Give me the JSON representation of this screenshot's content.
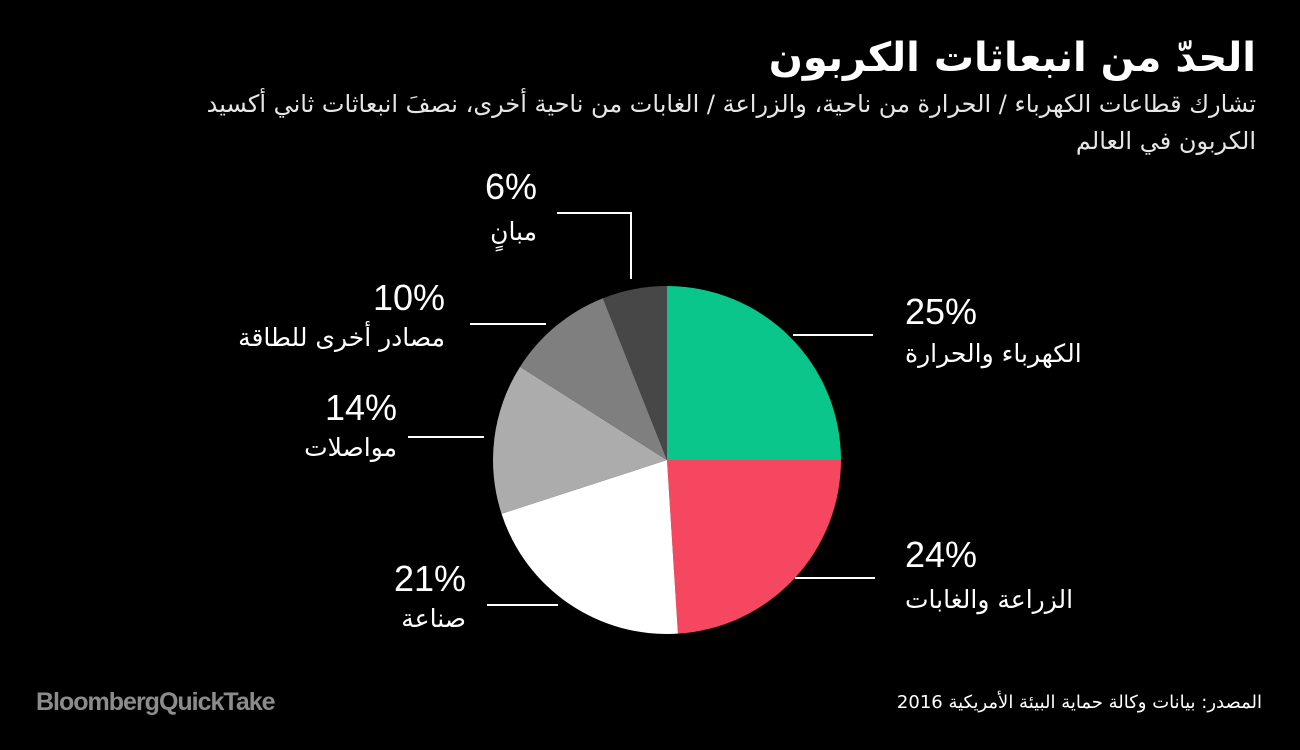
{
  "title": "الحدّ من انبعاثات الكربون",
  "subtitle": "تشارك قطاعات الكهرباء / الحرارة من ناحية، والزراعة / الغابات من ناحية أخرى، نصفَ انبعاثات ثاني أكسيد الكربون في العالم",
  "source": "المصدر: بيانات وكالة حماية البيئة الأمريكية 2016",
  "logo": "BloombergQuickTake",
  "chart_data": {
    "type": "pie",
    "start_angle_deg": 0,
    "direction": "clockwise",
    "slices": [
      {
        "label": "الكهرباء والحرارة",
        "value": 25,
        "value_label": "25%",
        "color": "#0bc68a"
      },
      {
        "label": "الزراعة والغابات",
        "value": 24,
        "value_label": "24%",
        "color": "#f5475f"
      },
      {
        "label": "صناعة",
        "value": 21,
        "value_label": "21%",
        "color": "#ffffff"
      },
      {
        "label": "مواصلات",
        "value": 14,
        "value_label": "14%",
        "color": "#acacac"
      },
      {
        "label": "مصادر أخرى للطاقة",
        "value": 10,
        "value_label": "10%",
        "color": "#7f7f7f"
      },
      {
        "label": "مبانٍ",
        "value": 6,
        "value_label": "6%",
        "color": "#474747"
      }
    ]
  }
}
